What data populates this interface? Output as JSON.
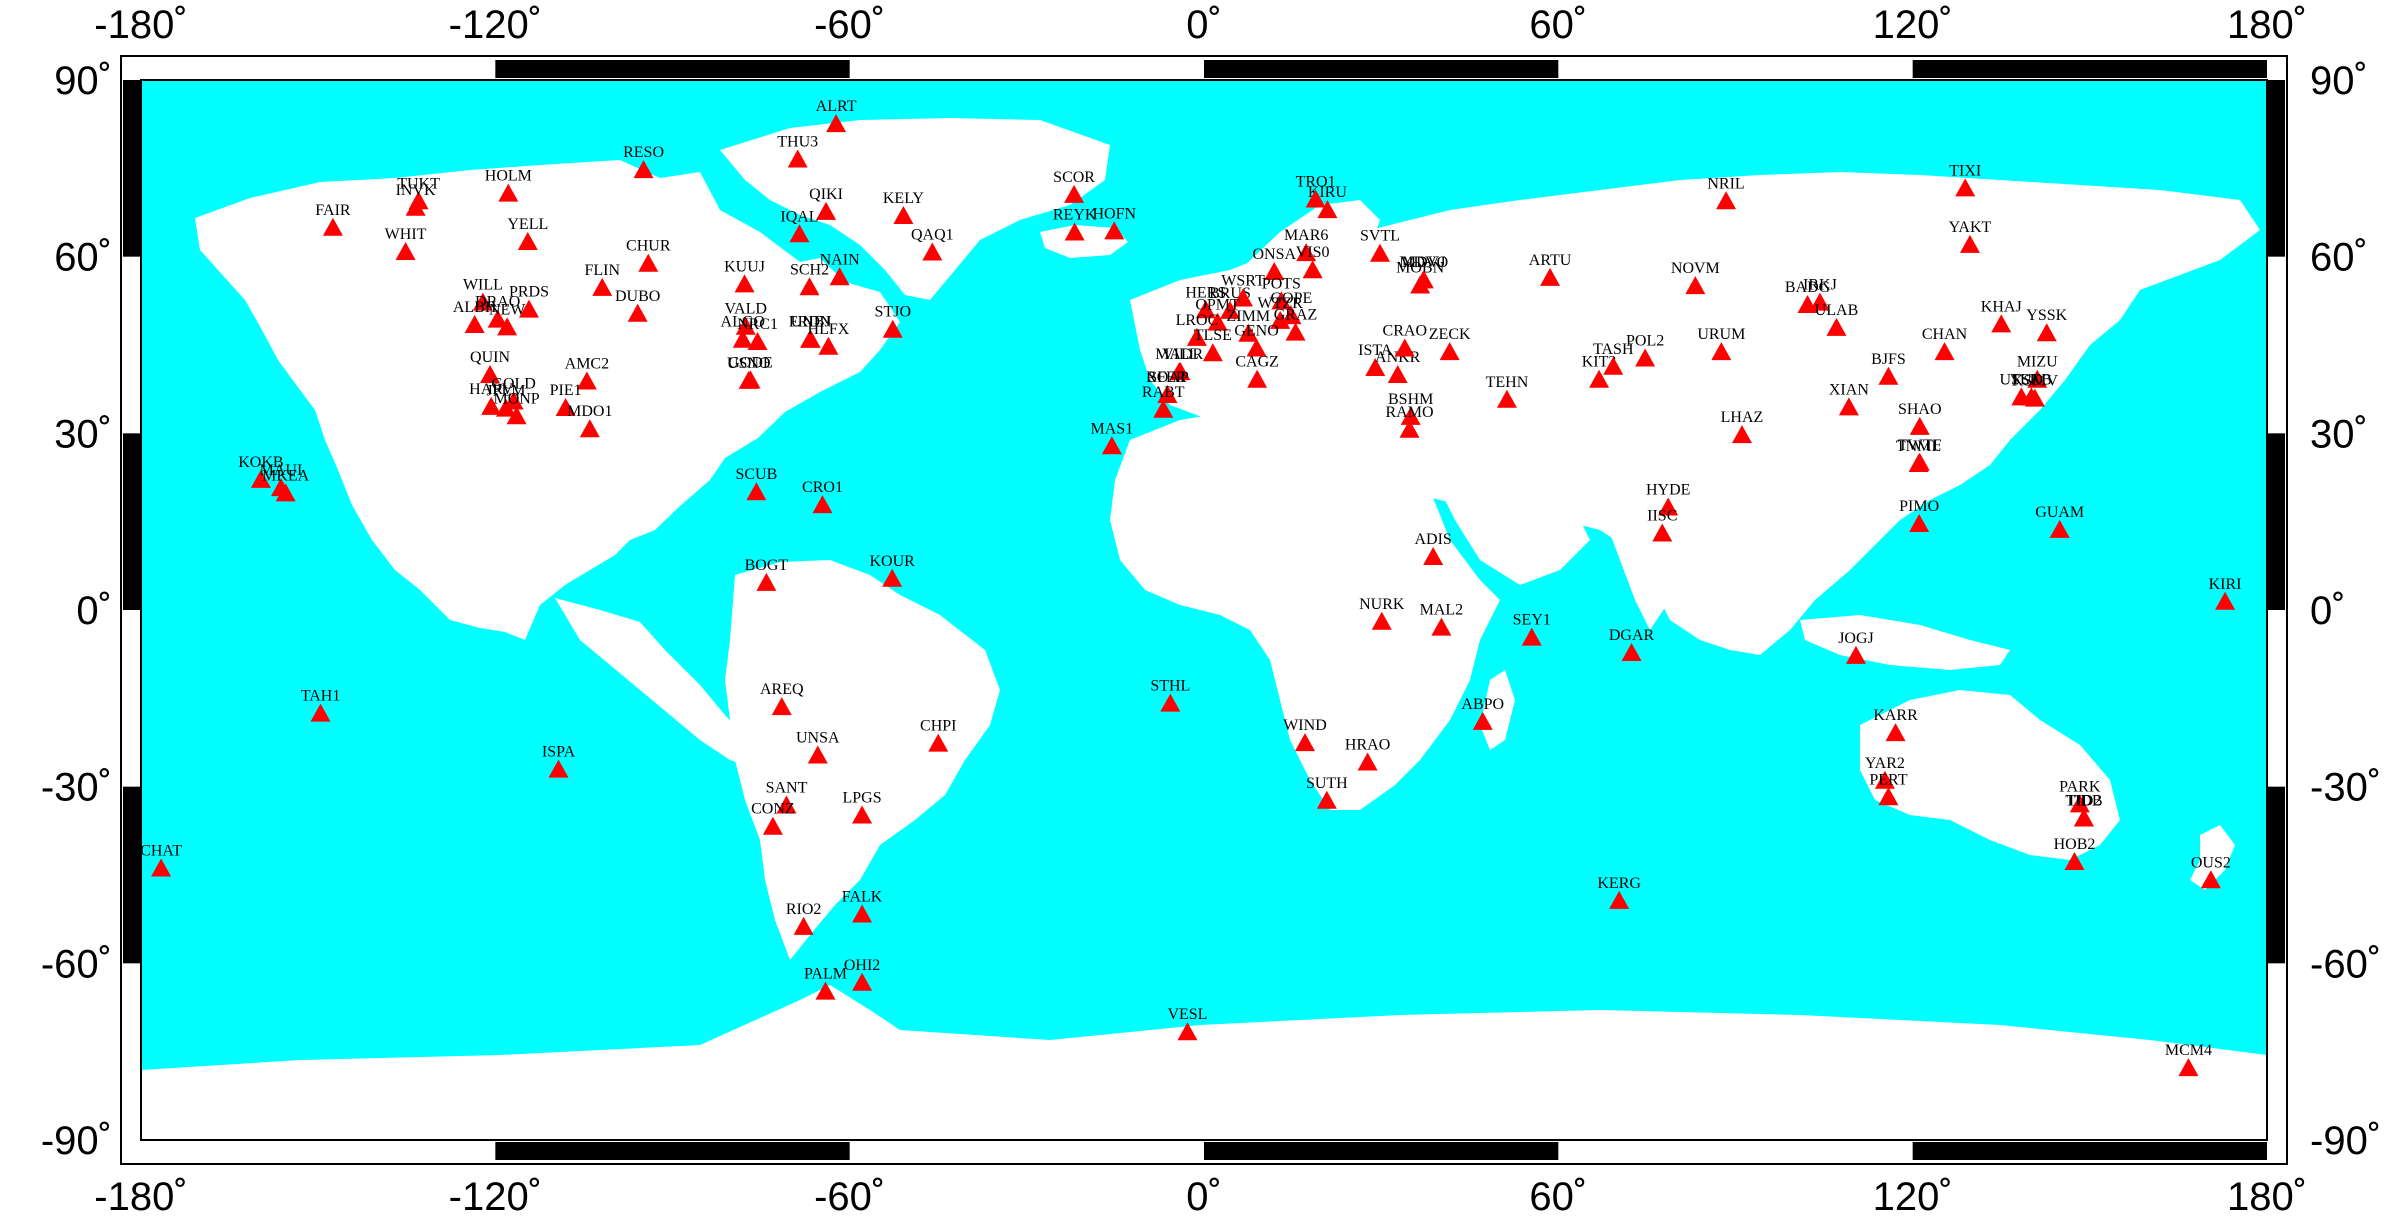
{
  "map": {
    "ocean_color": "#00FFFF",
    "land_color": "#FFFFFF",
    "marker_color": "#FF0000",
    "frame_color": "#000000",
    "lon_ticks": [
      "-180˚",
      "-120˚",
      "-60˚",
      "0˚",
      "60˚",
      "120˚",
      "180˚"
    ],
    "lat_ticks": [
      "90˚",
      "60˚",
      "30˚",
      "0˚",
      "-30˚",
      "-60˚",
      "-90˚"
    ],
    "lon_values": [
      -180,
      -120,
      -60,
      0,
      60,
      120,
      180
    ],
    "lat_values": [
      90,
      60,
      30,
      0,
      -30,
      -60,
      -90
    ]
  },
  "stations": [
    {
      "name": "ALRT",
      "lon": -62.3,
      "lat": 82.5
    },
    {
      "name": "THU3",
      "lon": -68.8,
      "lat": 76.5
    },
    {
      "name": "RESO",
      "lon": -94.9,
      "lat": 74.7
    },
    {
      "name": "HOLM",
      "lon": -117.8,
      "lat": 70.7
    },
    {
      "name": "TUKT",
      "lon": -133.0,
      "lat": 69.4
    },
    {
      "name": "INVK",
      "lon": -133.5,
      "lat": 68.3
    },
    {
      "name": "FAIR",
      "lon": -147.5,
      "lat": 64.9
    },
    {
      "name": "WHIT",
      "lon": -135.2,
      "lat": 60.8
    },
    {
      "name": "YELL",
      "lon": -114.5,
      "lat": 62.5
    },
    {
      "name": "QIKI",
      "lon": -64.0,
      "lat": 67.6
    },
    {
      "name": "IQAL",
      "lon": -68.5,
      "lat": 63.8
    },
    {
      "name": "KELY",
      "lon": -50.9,
      "lat": 66.9
    },
    {
      "name": "QAQ1",
      "lon": -46.0,
      "lat": 60.7
    },
    {
      "name": "SCOR",
      "lon": -22.0,
      "lat": 70.5
    },
    {
      "name": "REYK",
      "lon": -21.9,
      "lat": 64.1
    },
    {
      "name": "HOFN",
      "lon": -15.2,
      "lat": 64.3
    },
    {
      "name": "CHUR",
      "lon": -94.1,
      "lat": 58.8
    },
    {
      "name": "FLIN",
      "lon": -101.9,
      "lat": 54.7
    },
    {
      "name": "KUUJ",
      "lon": -77.8,
      "lat": 55.3
    },
    {
      "name": "SCH2",
      "lon": -66.8,
      "lat": 54.8
    },
    {
      "name": "NAIN",
      "lon": -61.7,
      "lat": 56.5
    },
    {
      "name": "WILL",
      "lon": -122.1,
      "lat": 52.2
    },
    {
      "name": "PRDS",
      "lon": -114.3,
      "lat": 51.0
    },
    {
      "name": "DUBO",
      "lon": -95.9,
      "lat": 50.3
    },
    {
      "name": "ALBH",
      "lon": -123.5,
      "lat": 48.4
    },
    {
      "name": "DRAO",
      "lon": -119.6,
      "lat": 49.3
    },
    {
      "name": "NEW",
      "lon": -118.0,
      "lat": 48.0
    },
    {
      "name": "VALD",
      "lon": -77.6,
      "lat": 48.1
    },
    {
      "name": "ALGO",
      "lon": -78.1,
      "lat": 45.9
    },
    {
      "name": "NRC1",
      "lon": -75.6,
      "lat": 45.5
    },
    {
      "name": "FRDN",
      "lon": -66.7,
      "lat": 45.9
    },
    {
      "name": "UNBJ",
      "lon": -66.6,
      "lat": 45.9
    },
    {
      "name": "HLFX",
      "lon": -63.6,
      "lat": 44.7
    },
    {
      "name": "STJO",
      "lon": -52.7,
      "lat": 47.6
    },
    {
      "name": "QUIN",
      "lon": -120.9,
      "lat": 39.9
    },
    {
      "name": "AMC2",
      "lon": -104.5,
      "lat": 38.8
    },
    {
      "name": "USNO",
      "lon": -77.1,
      "lat": 38.9
    },
    {
      "name": "GODE",
      "lon": -76.8,
      "lat": 39.0
    },
    {
      "name": "GOLD",
      "lon": -116.9,
      "lat": 35.4
    },
    {
      "name": "HARV",
      "lon": -120.7,
      "lat": 34.5
    },
    {
      "name": "JPLM",
      "lon": -118.2,
      "lat": 34.2
    },
    {
      "name": "PIE1",
      "lon": -108.1,
      "lat": 34.3
    },
    {
      "name": "MONP",
      "lon": -116.4,
      "lat": 32.9
    },
    {
      "name": "MDO1",
      "lon": -104.0,
      "lat": 30.7
    },
    {
      "name": "KOKB",
      "lon": -159.7,
      "lat": 22.1
    },
    {
      "name": "MAUI",
      "lon": -156.3,
      "lat": 20.7
    },
    {
      "name": "MKEA",
      "lon": -155.5,
      "lat": 19.8
    },
    {
      "name": "SCUB",
      "lon": -75.8,
      "lat": 20.0
    },
    {
      "name": "CRO1",
      "lon": -64.6,
      "lat": 17.8
    },
    {
      "name": "BOGT",
      "lon": -74.1,
      "lat": 4.6
    },
    {
      "name": "KOUR",
      "lon": -52.8,
      "lat": 5.3
    },
    {
      "name": "TAH1",
      "lon": -149.6,
      "lat": -17.6
    },
    {
      "name": "AREQ",
      "lon": -71.5,
      "lat": -16.5
    },
    {
      "name": "UNSA",
      "lon": -65.4,
      "lat": -24.7
    },
    {
      "name": "CHPI",
      "lon": -45.0,
      "lat": -22.7
    },
    {
      "name": "ISPA",
      "lon": -109.3,
      "lat": -27.1
    },
    {
      "name": "SANT",
      "lon": -70.7,
      "lat": -33.2
    },
    {
      "name": "CONZ",
      "lon": -73.0,
      "lat": -36.8
    },
    {
      "name": "LPGS",
      "lon": -57.9,
      "lat": -34.9
    },
    {
      "name": "CHAT",
      "lon": -176.6,
      "lat": -43.9
    },
    {
      "name": "RIO2",
      "lon": -67.8,
      "lat": -53.8
    },
    {
      "name": "FALK",
      "lon": -57.9,
      "lat": -51.7
    },
    {
      "name": "PALM",
      "lon": -64.1,
      "lat": -64.8
    },
    {
      "name": "OHI2",
      "lon": -57.9,
      "lat": -63.3
    },
    {
      "name": "MAS1",
      "lon": -15.6,
      "lat": 27.8
    },
    {
      "name": "STHL",
      "lon": -5.7,
      "lat": -15.9
    },
    {
      "name": "VESL",
      "lon": -2.8,
      "lat": -71.7
    },
    {
      "name": "KIRU",
      "lon": 20.9,
      "lat": 67.9
    },
    {
      "name": "TRO1",
      "lon": 18.9,
      "lat": 69.7
    },
    {
      "name": "MAR6",
      "lon": 17.3,
      "lat": 60.6
    },
    {
      "name": "SVTL",
      "lon": 29.8,
      "lat": 60.5
    },
    {
      "name": "ONSA",
      "lon": 11.9,
      "lat": 57.4
    },
    {
      "name": "VIS0",
      "lon": 18.4,
      "lat": 57.7
    },
    {
      "name": "MOBN",
      "lon": 36.6,
      "lat": 55.1
    },
    {
      "name": "MDVO",
      "lon": 37.2,
      "lat": 56.0
    },
    {
      "name": "MDVJ",
      "lon": 37.2,
      "lat": 56.0
    },
    {
      "name": "ARTU",
      "lon": 58.6,
      "lat": 56.4
    },
    {
      "name": "HERS",
      "lon": 0.3,
      "lat": 50.9
    },
    {
      "name": "BRUS",
      "lon": 4.4,
      "lat": 50.8
    },
    {
      "name": "WSRT",
      "lon": 6.6,
      "lat": 52.9
    },
    {
      "name": "POTS",
      "lon": 13.1,
      "lat": 52.4
    },
    {
      "name": "WTZR",
      "lon": 12.9,
      "lat": 49.1
    },
    {
      "name": "GOPE",
      "lon": 14.8,
      "lat": 49.9
    },
    {
      "name": "OPMT",
      "lon": 2.3,
      "lat": 48.8
    },
    {
      "name": "ZIMM",
      "lon": 7.5,
      "lat": 46.9
    },
    {
      "name": "GRAZ",
      "lon": 15.5,
      "lat": 47.1
    },
    {
      "name": "LROC",
      "lon": -1.2,
      "lat": 46.2
    },
    {
      "name": "TLSE",
      "lon": 1.5,
      "lat": 43.6
    },
    {
      "name": "GENO",
      "lon": 8.9,
      "lat": 44.4
    },
    {
      "name": "VILL",
      "lon": -4.0,
      "lat": 40.4
    },
    {
      "name": "MADR",
      "lon": -4.2,
      "lat": 40.4
    },
    {
      "name": "SFER",
      "lon": -6.2,
      "lat": 36.5
    },
    {
      "name": "ROAP",
      "lon": -6.2,
      "lat": 36.5
    },
    {
      "name": "RABT",
      "lon": -6.9,
      "lat": 34.0
    },
    {
      "name": "CAGZ",
      "lon": 9.0,
      "lat": 39.1
    },
    {
      "name": "ISTA",
      "lon": 29.0,
      "lat": 41.1
    },
    {
      "name": "ANKR",
      "lon": 32.8,
      "lat": 39.9
    },
    {
      "name": "CRAO",
      "lon": 34.0,
      "lat": 44.4
    },
    {
      "name": "ZECK",
      "lon": 41.6,
      "lat": 43.8
    },
    {
      "name": "BSHM",
      "lon": 35.0,
      "lat": 32.8
    },
    {
      "name": "RAMO",
      "lon": 34.8,
      "lat": 30.6
    },
    {
      "name": "TEHN",
      "lon": 51.3,
      "lat": 35.7
    },
    {
      "name": "ADIS",
      "lon": 38.8,
      "lat": 9.0
    },
    {
      "name": "NURK",
      "lon": 30.1,
      "lat": -2.0
    },
    {
      "name": "MAL2",
      "lon": 40.2,
      "lat": -3.0
    },
    {
      "name": "SEY1",
      "lon": 55.5,
      "lat": -4.7
    },
    {
      "name": "DGAR",
      "lon": 72.4,
      "lat": -7.3
    },
    {
      "name": "ABPO",
      "lon": 47.2,
      "lat": -19.0
    },
    {
      "name": "WIND",
      "lon": 17.1,
      "lat": -22.6
    },
    {
      "name": "HRAO",
      "lon": 27.7,
      "lat": -25.9
    },
    {
      "name": "SUTH",
      "lon": 20.8,
      "lat": -32.4
    },
    {
      "name": "KERG",
      "lon": 70.3,
      "lat": -49.4
    },
    {
      "name": "NRIL",
      "lon": 88.4,
      "lat": 69.4
    },
    {
      "name": "NOVM",
      "lon": 83.2,
      "lat": 55.0
    },
    {
      "name": "KIT3",
      "lon": 66.9,
      "lat": 39.1
    },
    {
      "name": "TASH",
      "lon": 69.3,
      "lat": 41.3
    },
    {
      "name": "POL2",
      "lon": 74.7,
      "lat": 42.7
    },
    {
      "name": "URUM",
      "lon": 87.6,
      "lat": 43.8
    },
    {
      "name": "IRKJ",
      "lon": 104.3,
      "lat": 52.2
    },
    {
      "name": "BADG",
      "lon": 102.2,
      "lat": 51.8
    },
    {
      "name": "ULAB",
      "lon": 107.1,
      "lat": 47.9
    },
    {
      "name": "LHAZ",
      "lon": 91.1,
      "lat": 29.7
    },
    {
      "name": "HYDE",
      "lon": 78.6,
      "lat": 17.4
    },
    {
      "name": "IISC",
      "lon": 77.6,
      "lat": 13.0
    },
    {
      "name": "BJFS",
      "lon": 115.9,
      "lat": 39.6
    },
    {
      "name": "XIAN",
      "lon": 109.2,
      "lat": 34.4
    },
    {
      "name": "SHAO",
      "lon": 121.2,
      "lat": 31.1
    },
    {
      "name": "TNML",
      "lon": 121.0,
      "lat": 24.8
    },
    {
      "name": "TWTF",
      "lon": 121.2,
      "lat": 25.0
    },
    {
      "name": "PIMO",
      "lon": 121.1,
      "lat": 14.6
    },
    {
      "name": "CHAN",
      "lon": 125.4,
      "lat": 43.8
    },
    {
      "name": "KHAJ",
      "lon": 135.0,
      "lat": 48.5
    },
    {
      "name": "YSSK",
      "lon": 142.7,
      "lat": 47.0
    },
    {
      "name": "YAKT",
      "lon": 129.7,
      "lat": 62.0
    },
    {
      "name": "TIXI",
      "lon": 128.9,
      "lat": 71.6
    },
    {
      "name": "MIZU",
      "lon": 141.1,
      "lat": 39.1
    },
    {
      "name": "USUD",
      "lon": 138.4,
      "lat": 36.1
    },
    {
      "name": "TSKB",
      "lon": 140.1,
      "lat": 36.1
    },
    {
      "name": "KSMV",
      "lon": 140.7,
      "lat": 35.9
    },
    {
      "name": "GUAM",
      "lon": 144.9,
      "lat": 13.6
    },
    {
      "name": "JOGJ",
      "lon": 110.4,
      "lat": -7.8
    },
    {
      "name": "KARR",
      "lon": 117.1,
      "lat": -20.9
    },
    {
      "name": "YAR2",
      "lon": 115.3,
      "lat": -29.0
    },
    {
      "name": "PERT",
      "lon": 115.9,
      "lat": -31.8
    },
    {
      "name": "PARK",
      "lon": 148.3,
      "lat": -33.0
    },
    {
      "name": "TIDB",
      "lon": 149.0,
      "lat": -35.4
    },
    {
      "name": "TID2",
      "lon": 149.0,
      "lat": -35.4
    },
    {
      "name": "HOB2",
      "lon": 147.4,
      "lat": -42.8
    },
    {
      "name": "OUS2",
      "lon": 170.5,
      "lat": -45.9
    },
    {
      "name": "KIRI",
      "lon": 172.9,
      "lat": 1.4
    },
    {
      "name": "MCM4",
      "lon": 166.7,
      "lat": -77.8
    }
  ]
}
